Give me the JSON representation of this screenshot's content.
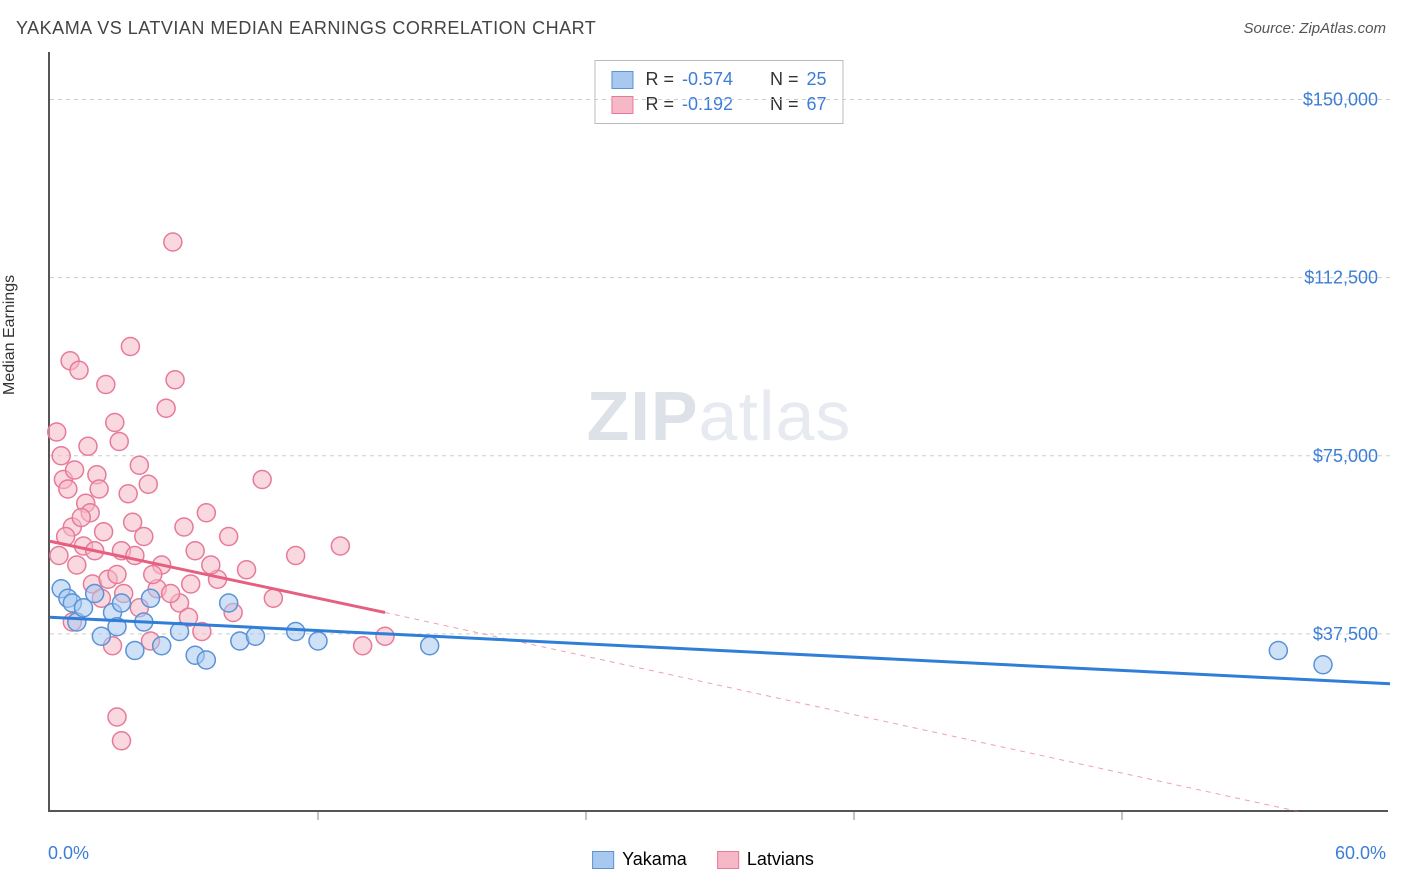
{
  "title": "YAKAMA VS LATVIAN MEDIAN EARNINGS CORRELATION CHART",
  "source": "Source: ZipAtlas.com",
  "watermark_bold": "ZIP",
  "watermark_light": "atlas",
  "y_axis_label": "Median Earnings",
  "chart": {
    "type": "scatter-with-regression",
    "background_color": "#ffffff",
    "grid_color": "#cccccc",
    "axis_color": "#555555",
    "tick_label_color": "#3b7dd8",
    "xlim": [
      0,
      60
    ],
    "ylim": [
      0,
      160000
    ],
    "x_ticks": [
      0,
      12,
      24,
      36,
      48,
      60
    ],
    "x_min_label": "0.0%",
    "x_max_label": "60.0%",
    "y_ticks": [
      {
        "value": 37500,
        "label": "$37,500"
      },
      {
        "value": 75000,
        "label": "$75,000"
      },
      {
        "value": 112500,
        "label": "$112,500"
      },
      {
        "value": 150000,
        "label": "$150,000"
      }
    ],
    "marker_radius": 9,
    "marker_opacity": 0.55,
    "line_width": 3,
    "series": [
      {
        "name": "Yakama",
        "color_fill": "#a8c8f0",
        "color_stroke": "#5a93d6",
        "line_color": "#2f7ed8",
        "R": "-0.574",
        "N": "25",
        "regression": {
          "x1": 0,
          "y1": 41000,
          "x2": 60,
          "y2": 27000
        },
        "points": [
          [
            0.5,
            47000
          ],
          [
            0.8,
            45000
          ],
          [
            1.0,
            44000
          ],
          [
            1.2,
            40000
          ],
          [
            1.5,
            43000
          ],
          [
            2.0,
            46000
          ],
          [
            2.3,
            37000
          ],
          [
            2.8,
            42000
          ],
          [
            3.0,
            39000
          ],
          [
            3.2,
            44000
          ],
          [
            3.8,
            34000
          ],
          [
            4.2,
            40000
          ],
          [
            4.5,
            45000
          ],
          [
            5.0,
            35000
          ],
          [
            5.8,
            38000
          ],
          [
            6.5,
            33000
          ],
          [
            7.0,
            32000
          ],
          [
            8.0,
            44000
          ],
          [
            8.5,
            36000
          ],
          [
            9.2,
            37000
          ],
          [
            11.0,
            38000
          ],
          [
            12.0,
            36000
          ],
          [
            17.0,
            35000
          ],
          [
            55.0,
            34000
          ],
          [
            57.0,
            31000
          ]
        ]
      },
      {
        "name": "Latvians",
        "color_fill": "#f6b8c6",
        "color_stroke": "#e77a99",
        "line_color": "#e5607f",
        "dashed_extension": true,
        "R": "-0.192",
        "N": "67",
        "regression_solid": {
          "x1": 0,
          "y1": 57000,
          "x2": 15,
          "y2": 42000
        },
        "regression_dashed": {
          "x1": 15,
          "y1": 42000,
          "x2": 56,
          "y2": 0
        },
        "points": [
          [
            0.3,
            80000
          ],
          [
            0.5,
            75000
          ],
          [
            0.6,
            70000
          ],
          [
            0.8,
            68000
          ],
          [
            0.9,
            95000
          ],
          [
            1.0,
            60000
          ],
          [
            1.1,
            72000
          ],
          [
            1.2,
            52000
          ],
          [
            1.3,
            93000
          ],
          [
            1.5,
            56000
          ],
          [
            1.6,
            65000
          ],
          [
            1.8,
            63000
          ],
          [
            1.9,
            48000
          ],
          [
            2.0,
            55000
          ],
          [
            2.1,
            71000
          ],
          [
            2.2,
            68000
          ],
          [
            2.3,
            45000
          ],
          [
            2.5,
            90000
          ],
          [
            2.6,
            49000
          ],
          [
            2.8,
            35000
          ],
          [
            3.0,
            50000
          ],
          [
            3.1,
            78000
          ],
          [
            3.2,
            55000
          ],
          [
            3.3,
            46000
          ],
          [
            3.5,
            67000
          ],
          [
            3.6,
            98000
          ],
          [
            3.8,
            54000
          ],
          [
            4.0,
            43000
          ],
          [
            4.0,
            73000
          ],
          [
            4.2,
            58000
          ],
          [
            4.4,
            69000
          ],
          [
            4.5,
            36000
          ],
          [
            4.8,
            47000
          ],
          [
            5.0,
            52000
          ],
          [
            5.2,
            85000
          ],
          [
            5.5,
            120000
          ],
          [
            5.6,
            91000
          ],
          [
            5.8,
            44000
          ],
          [
            6.0,
            60000
          ],
          [
            6.2,
            41000
          ],
          [
            6.5,
            55000
          ],
          [
            6.8,
            38000
          ],
          [
            7.0,
            63000
          ],
          [
            7.5,
            49000
          ],
          [
            8.0,
            58000
          ],
          [
            8.2,
            42000
          ],
          [
            8.8,
            51000
          ],
          [
            9.5,
            70000
          ],
          [
            10.0,
            45000
          ],
          [
            11.0,
            54000
          ],
          [
            13.0,
            56000
          ],
          [
            14.0,
            35000
          ],
          [
            15.0,
            37000
          ],
          [
            3.0,
            20000
          ],
          [
            3.2,
            15000
          ],
          [
            0.7,
            58000
          ],
          [
            1.4,
            62000
          ],
          [
            2.4,
            59000
          ],
          [
            3.7,
            61000
          ],
          [
            4.6,
            50000
          ],
          [
            5.4,
            46000
          ],
          [
            6.3,
            48000
          ],
          [
            7.2,
            52000
          ],
          [
            1.7,
            77000
          ],
          [
            2.9,
            82000
          ],
          [
            0.4,
            54000
          ],
          [
            1.0,
            40000
          ]
        ]
      }
    ]
  }
}
